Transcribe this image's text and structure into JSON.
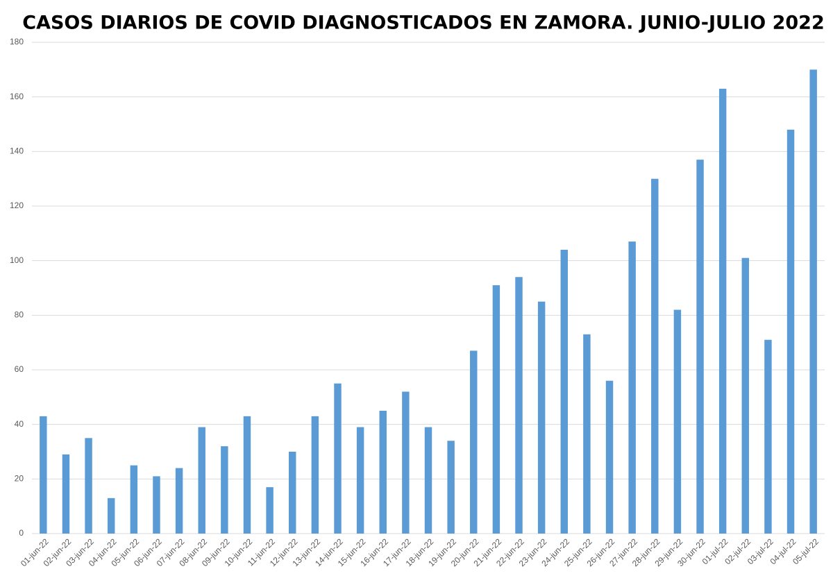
{
  "chart_data": {
    "type": "bar",
    "title": "CASOS DIARIOS DE COVID DIAGNOSTICADOS EN ZAMORA. JUNIO-JULIO 2022",
    "categories": [
      "01-jun-22",
      "02-jun-22",
      "03-jun-22",
      "04-jun-22",
      "05-jun-22",
      "06-jun-22",
      "07-jun-22",
      "08-jun-22",
      "09-jun-22",
      "10-jun-22",
      "11-jun-22",
      "12-jun-22",
      "13-jun-22",
      "14-jun-22",
      "15-jun-22",
      "16-jun-22",
      "17-jun-22",
      "18-jun-22",
      "19-jun-22",
      "20-jun-22",
      "21-jun-22",
      "22-jun-22",
      "23-jun-22",
      "24-jun-22",
      "25-jun-22",
      "26-jun-22",
      "27-jun-22",
      "28-jun-22",
      "29-jun-22",
      "30-jun-22",
      "01-jul-22",
      "02-jul-22",
      "03-jul-22",
      "04-jul-22",
      "05-jul-22"
    ],
    "values": [
      43,
      29,
      35,
      13,
      25,
      21,
      24,
      39,
      32,
      43,
      17,
      30,
      43,
      55,
      39,
      45,
      52,
      39,
      34,
      67,
      91,
      94,
      85,
      104,
      73,
      56,
      107,
      130,
      82,
      137,
      163,
      101,
      71,
      148,
      170
    ],
    "color": "#5b9bd5",
    "ylim": [
      0,
      180
    ],
    "yticks": [
      0,
      20,
      40,
      60,
      80,
      100,
      120,
      140,
      160,
      180
    ],
    "grid": true
  }
}
